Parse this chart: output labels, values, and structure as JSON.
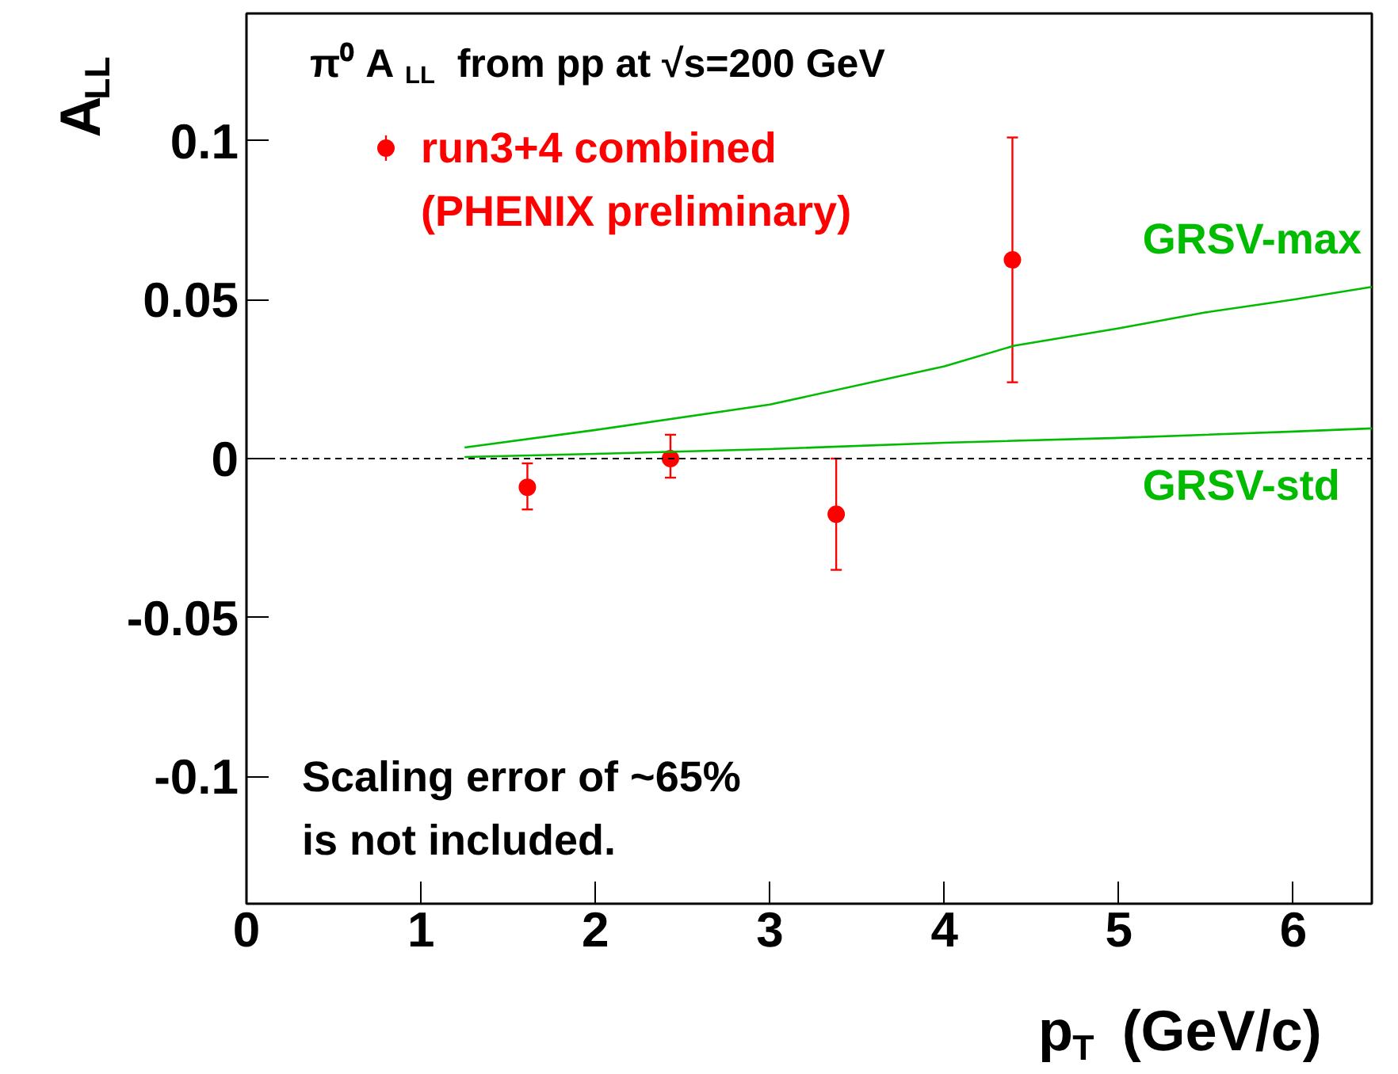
{
  "chart_data": {
    "type": "scatter",
    "title": "π⁰ A$_{LL}$ from pp at √s=200 GeV",
    "xlabel": "p$_{T}$ (GeV/c)",
    "ylabel": "A$_{LL}$",
    "xlim": [
      0,
      6.45
    ],
    "ylim": [
      -0.14,
      0.14
    ],
    "xticks": [
      0,
      1,
      2,
      3,
      4,
      5,
      6
    ],
    "yticks": [
      {
        "value": -0.1,
        "label": "-0.1"
      },
      {
        "value": -0.05,
        "label": "-0.05"
      },
      0,
      {
        "value": 0.05,
        "label": "0.05"
      },
      {
        "value": 0.1,
        "label": "0.1"
      }
    ],
    "grid": false,
    "legend": "top left",
    "series": [
      {
        "name": "run3+4 combined\n(PHENIX preliminary)",
        "marker": "circle",
        "color": "#ff0000",
        "x": [
          1.61,
          2.43,
          3.38,
          4.39
        ],
        "values": [
          -0.009,
          0.0,
          -0.0175,
          0.0625
        ],
        "errors": [
          [
            -0.016,
            -0.0015
          ],
          [
            -0.006,
            0.0075
          ],
          [
            -0.035,
            0.0
          ],
          [
            0.024,
            0.101
          ]
        ]
      },
      {
        "name": "GRSV-max",
        "type": "line",
        "color": "#00bb00",
        "x": [
          1.25,
          2,
          3,
          4,
          4.4,
          5,
          5.5,
          6,
          6.45
        ],
        "values": [
          0.0035,
          0.009,
          0.017,
          0.029,
          0.0355,
          0.041,
          0.046,
          0.05,
          0.054
        ]
      },
      {
        "name": "GRSV-std",
        "type": "line",
        "color": "#00bb00",
        "x": [
          1.25,
          2,
          3,
          4,
          5,
          6,
          6.45
        ],
        "values": [
          0.0005,
          0.0015,
          0.003,
          0.005,
          0.0065,
          0.0085,
          0.0095
        ]
      }
    ],
    "ref_lines": [
      {
        "axis": "y",
        "value": 0,
        "label": null,
        "color": "#000000",
        "line_style": "dashed"
      }
    ],
    "annotations": [
      "Scaling error of ~65%\nis not included."
    ]
  }
}
